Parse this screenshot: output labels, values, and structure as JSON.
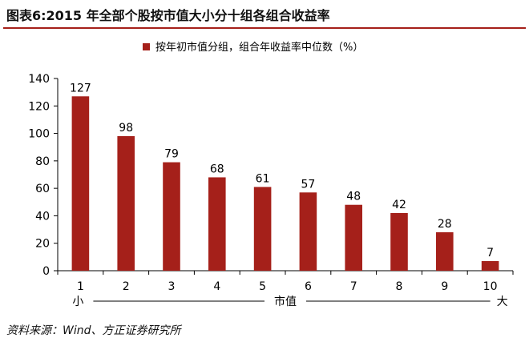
{
  "figure_title": "图表6:2015 年全部个股按市值大小分十组各组合收益率",
  "source_note": "资料来源：Wind、方正证券研究所",
  "colors": {
    "bar": "#a5201a",
    "rule": "#a5201a",
    "axis": "#000000"
  },
  "chart_data": {
    "type": "bar",
    "categories": [
      "1",
      "2",
      "3",
      "4",
      "5",
      "6",
      "7",
      "8",
      "9",
      "10"
    ],
    "series": [
      {
        "name": "按年初市值分组，组合年收益率中位数（%）",
        "values": [
          127,
          98,
          79,
          68,
          61,
          57,
          48,
          42,
          28,
          7
        ]
      }
    ],
    "data_labels": [
      "127",
      "98",
      "79",
      "68",
      "61",
      "57",
      "48",
      "42",
      "28",
      "7"
    ],
    "y_ticks": [
      "0",
      "20",
      "40",
      "60",
      "80",
      "100",
      "120",
      "140"
    ],
    "ylim": [
      0,
      140
    ],
    "grid": false,
    "legend_position": "top-center",
    "x_annotation": {
      "left": "小",
      "center": "市值",
      "right": "大"
    }
  }
}
